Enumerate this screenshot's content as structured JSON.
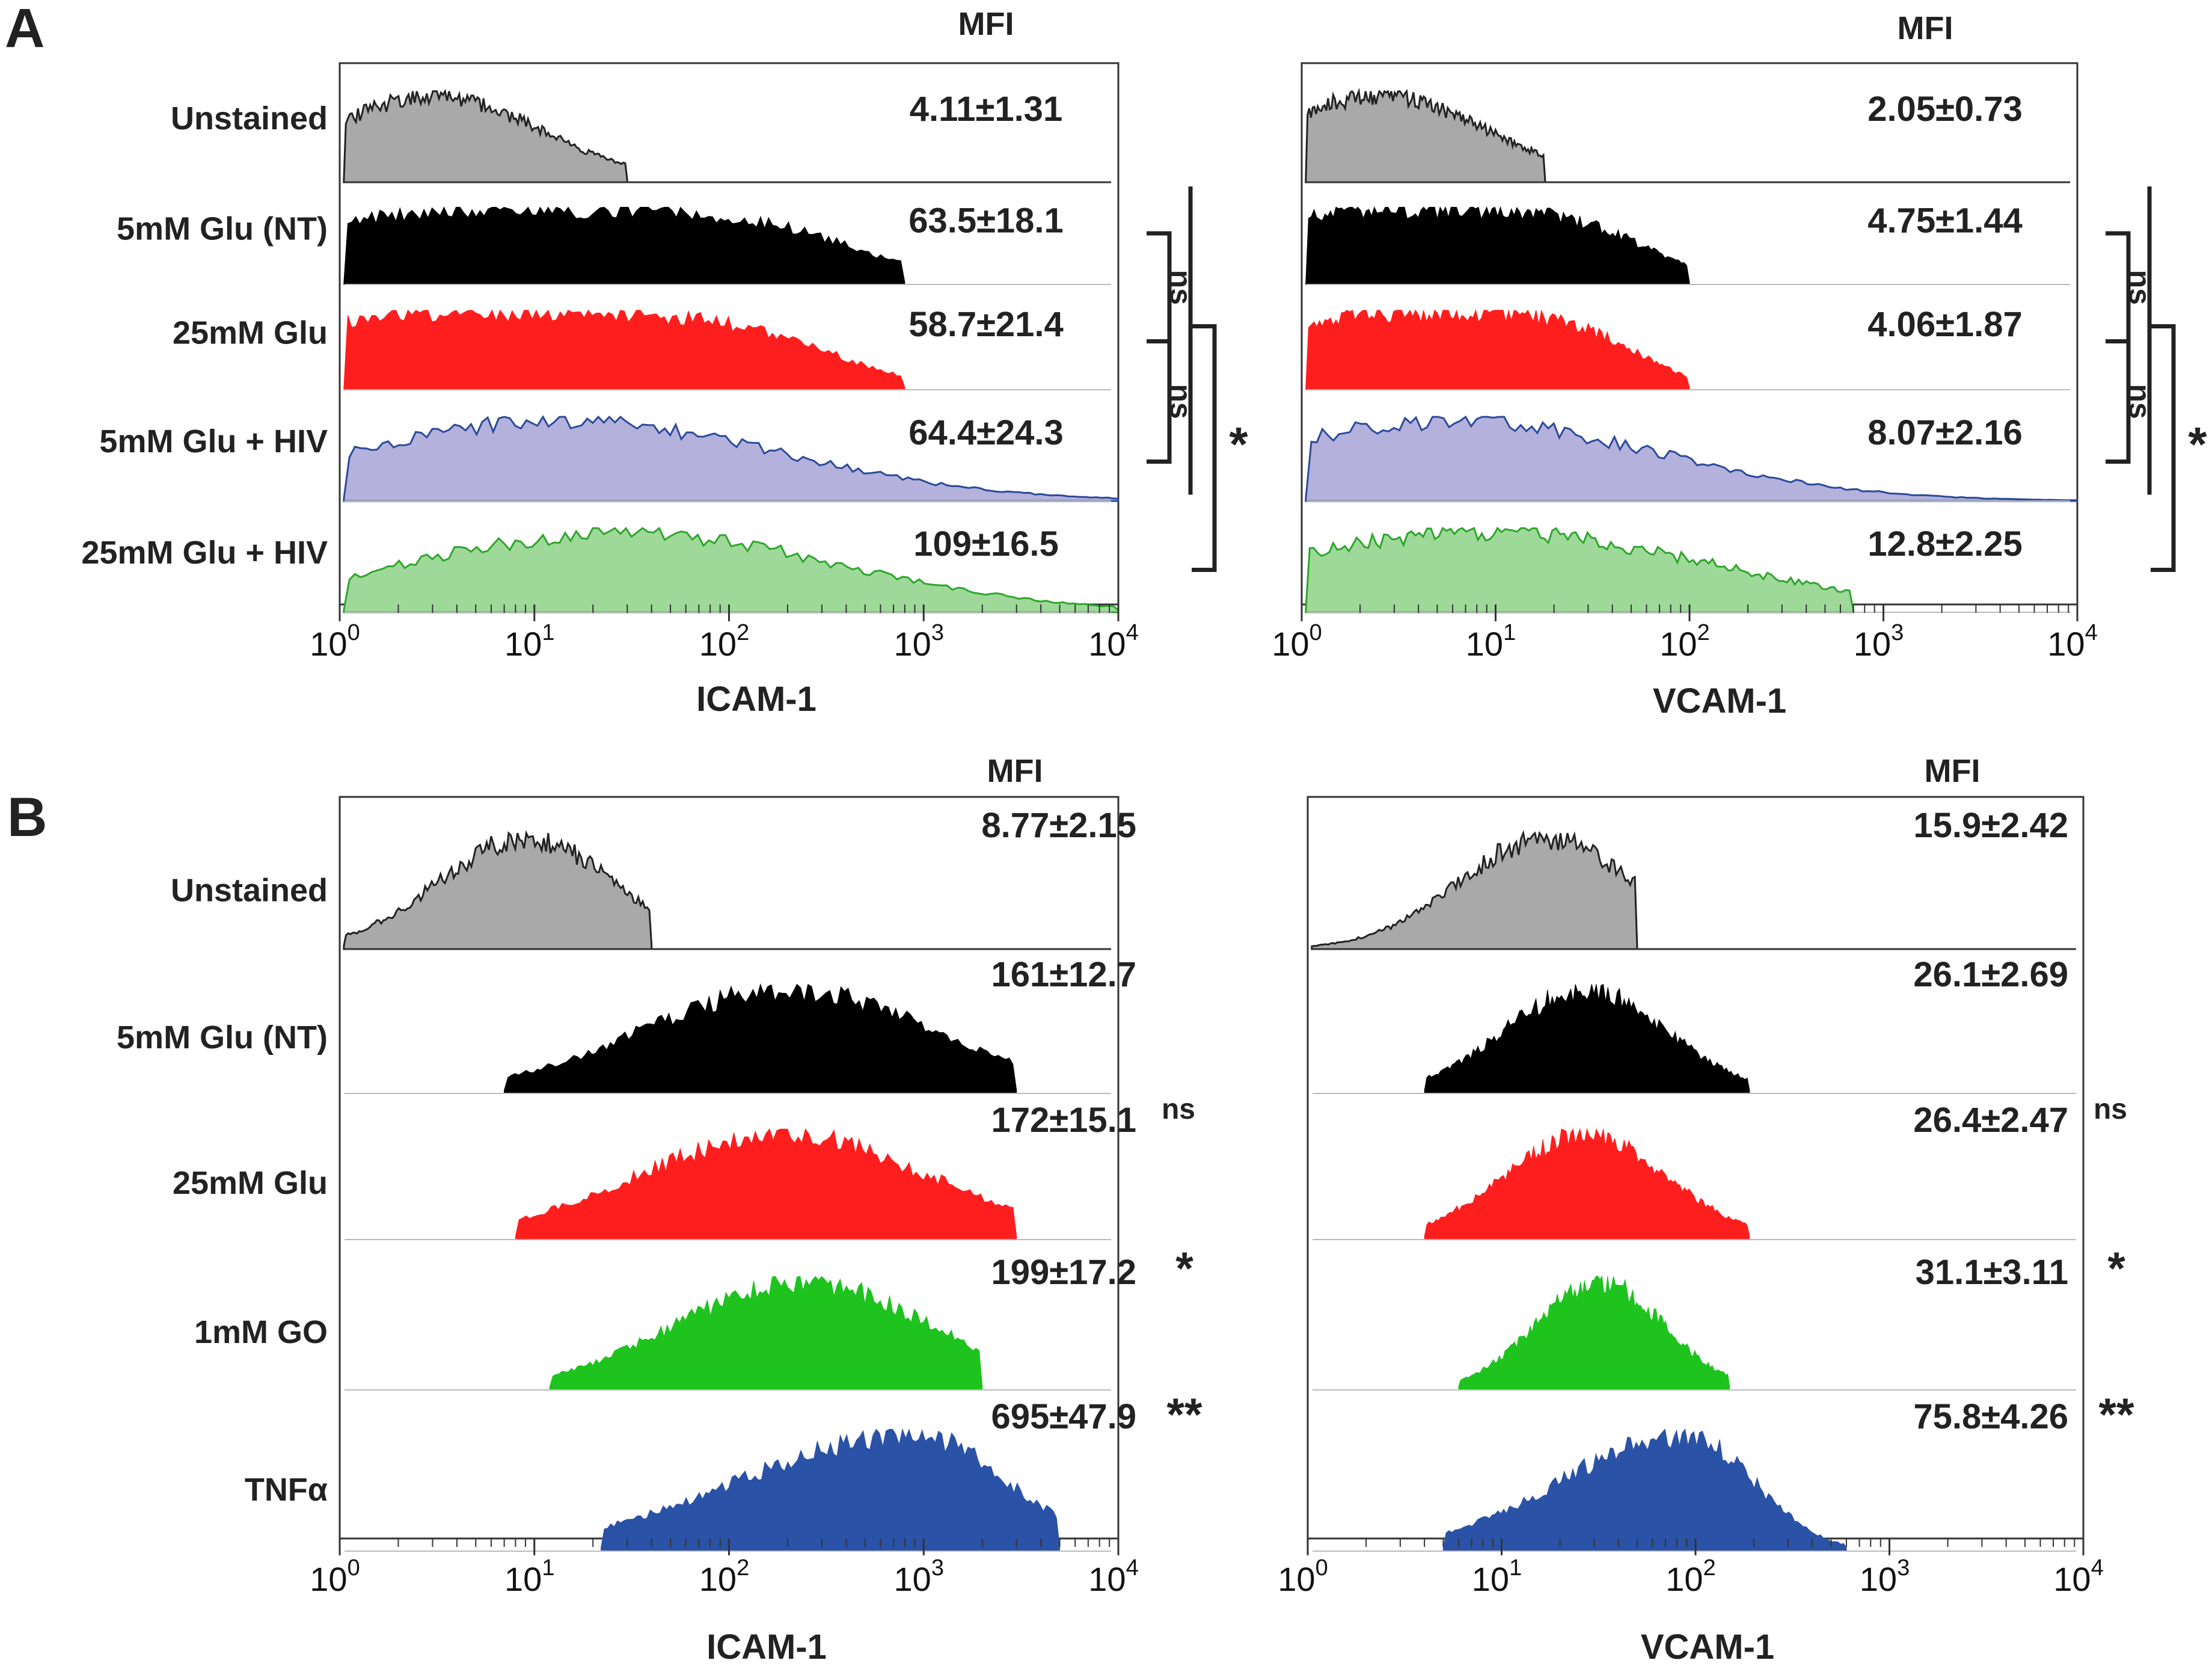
{
  "colors": {
    "unstained": "#a9a9a9",
    "nt": "#000000",
    "glu25": "#ff1e1e",
    "hiv5": "#b4b1dc",
    "hiv5_line": "#2a4a9a",
    "hiv25": "#9ed99a",
    "hiv25_line": "#2ea62a",
    "go": "#1ec31e",
    "tnf": "#2a52a6"
  },
  "chart_data": [
    {
      "panel": "A",
      "type": "histogram",
      "xscale": "log",
      "xlim": [
        1,
        10000
      ],
      "xlabel": "ICAM-1",
      "header": "MFI",
      "tick_labels": [
        "10",
        "10",
        "10",
        "10",
        "10"
      ],
      "tick_exps": [
        "0",
        "1",
        "2",
        "3",
        "4"
      ],
      "series": [
        {
          "name": "Unstained",
          "mfi": "4.11±1.31",
          "color_key": "unstained",
          "outline": true,
          "lo": 1.05,
          "hi": 30,
          "peak": 3,
          "sigma": 0.55,
          "seed": 11
        },
        {
          "name": "5mM Glu (NT)",
          "mfi": "63.5±18.1",
          "color_key": "nt",
          "lo": 1.05,
          "hi": 800,
          "peak": 12,
          "sigma": 1.3,
          "plateau": true,
          "seed": 12
        },
        {
          "name": "25mM Glu",
          "mfi": "58.7±21.4",
          "color_key": "glu25",
          "lo": 1.05,
          "hi": 800,
          "peak": 10,
          "sigma": 1.25,
          "plateau": true,
          "seed": 13
        },
        {
          "name": "5mM Glu + HIV",
          "mfi": "64.4±24.3",
          "color_key": "hiv5",
          "line_key": "hiv5_line",
          "lo": 1.05,
          "hi": 10000,
          "peak": 14,
          "sigma": 1.1,
          "seed": 14
        },
        {
          "name": "25mM Glu + HIV",
          "mfi": "109±16.5",
          "color_key": "hiv25",
          "line_key": "hiv25_line",
          "lo": 1.05,
          "hi": 10000,
          "peak": 28,
          "sigma": 1.1,
          "seed": 15
        }
      ],
      "significance": [
        {
          "label": "ns",
          "rows": [
            1,
            2
          ]
        },
        {
          "label": "ns",
          "rows": [
            2,
            3
          ]
        },
        {
          "label": "*",
          "rows": [
            1,
            4
          ]
        }
      ]
    },
    {
      "panel": "",
      "type": "histogram",
      "xscale": "log",
      "xlim": [
        1,
        10000
      ],
      "xlabel": "VCAM-1",
      "header": "MFI",
      "tick_labels": [
        "10",
        "10",
        "10",
        "10",
        "10"
      ],
      "tick_exps": [
        "0",
        "1",
        "2",
        "3",
        "4"
      ],
      "series": [
        {
          "name": "Unstained",
          "mfi": "2.05±0.73",
          "color_key": "unstained",
          "outline": true,
          "lo": 1.05,
          "hi": 18,
          "peak": 2.5,
          "sigma": 0.55,
          "seed": 21
        },
        {
          "name": "5mM Glu (NT)",
          "mfi": "4.75±1.44",
          "color_key": "nt",
          "lo": 1.05,
          "hi": 100,
          "peak": 5,
          "sigma": 0.9,
          "plateau": true,
          "seed": 22
        },
        {
          "name": "25mM Glu",
          "mfi": "4.06±1.87",
          "color_key": "glu25",
          "lo": 1.05,
          "hi": 100,
          "peak": 5,
          "sigma": 0.85,
          "plateau": true,
          "seed": 23
        },
        {
          "name": "5mM Glu + HIV",
          "mfi": "8.07±2.16",
          "color_key": "hiv5",
          "line_key": "hiv5_line",
          "lo": 1.05,
          "hi": 10000,
          "peak": 6,
          "sigma": 1.05,
          "seed": 24
        },
        {
          "name": "25mM Glu + HIV",
          "mfi": "12.8±2.25",
          "color_key": "hiv25",
          "line_key": "hiv25_line",
          "lo": 1.05,
          "hi": 700,
          "peak": 9,
          "sigma": 1.15,
          "seed": 25
        }
      ],
      "significance": [
        {
          "label": "ns",
          "rows": [
            1,
            2
          ]
        },
        {
          "label": "ns",
          "rows": [
            2,
            3
          ]
        },
        {
          "label": "*",
          "rows": [
            1,
            4
          ]
        }
      ]
    },
    {
      "panel": "B",
      "type": "histogram",
      "xscale": "log",
      "xlim": [
        1,
        10000
      ],
      "xlabel": "ICAM-1",
      "header": "MFI",
      "tick_labels": [
        "10",
        "10",
        "10",
        "10",
        "10"
      ],
      "tick_exps": [
        "0",
        "1",
        "2",
        "3",
        "4"
      ],
      "series": [
        {
          "name": "Unstained",
          "mfi": "8.77±2.15",
          "sig": "",
          "color_key": "unstained",
          "outline": true,
          "lo": 1.05,
          "hi": 40,
          "peak": 9,
          "sigma": 0.45,
          "seed": 31
        },
        {
          "name": "5mM Glu (NT)",
          "mfi": "161±12.7",
          "sig": "",
          "color_key": "nt",
          "lo": 7,
          "hi": 3000,
          "peak": 200,
          "sigma": 0.75,
          "seed": 32
        },
        {
          "name": "25mM Glu",
          "mfi": "172±15.1",
          "sig": "ns",
          "color_key": "glu25",
          "lo": 8,
          "hi": 3000,
          "peak": 190,
          "sigma": 0.75,
          "seed": 33
        },
        {
          "name": "1mM GO",
          "mfi": "199±17.2",
          "sig": "*",
          "color_key": "go",
          "lo": 12,
          "hi": 2000,
          "peak": 240,
          "sigma": 0.65,
          "seed": 34
        },
        {
          "name": "TNFα",
          "mfi": "695±47.9",
          "sig": "**",
          "color_key": "tnf",
          "lo": 22,
          "hi": 5000,
          "peak": 900,
          "sigma": 0.9,
          "skew": true,
          "seed": 35
        }
      ]
    },
    {
      "panel": "",
      "type": "histogram",
      "xscale": "log",
      "xlim": [
        1,
        10000
      ],
      "xlabel": "VCAM-1",
      "header": "MFI",
      "tick_labels": [
        "10",
        "10",
        "10",
        "10",
        "10"
      ],
      "tick_exps": [
        "0",
        "1",
        "2",
        "3",
        "4"
      ],
      "series": [
        {
          "name": "Unstained",
          "mfi": "15.9±2.42",
          "sig": "",
          "color_key": "unstained",
          "outline": true,
          "lo": 1.05,
          "hi": 50,
          "peak": 17,
          "sigma": 0.45,
          "seed": 41
        },
        {
          "name": "5mM Glu (NT)",
          "mfi": "26.1±2.69",
          "sig": "",
          "color_key": "nt",
          "lo": 4,
          "hi": 190,
          "peak": 27,
          "sigma": 0.42,
          "seed": 42
        },
        {
          "name": "25mM Glu",
          "mfi": "26.4±2.47",
          "sig": "ns",
          "color_key": "glu25",
          "lo": 4,
          "hi": 190,
          "peak": 27,
          "sigma": 0.42,
          "seed": 43
        },
        {
          "name": "1mM GO",
          "mfi": "31.1±3.11",
          "sig": "*",
          "color_key": "go",
          "lo": 6,
          "hi": 150,
          "peak": 32,
          "sigma": 0.33,
          "seed": 44
        },
        {
          "name": "TNFα",
          "mfi": "75.8±4.26",
          "sig": "**",
          "color_key": "tnf",
          "lo": 5,
          "hi": 600,
          "peak": 90,
          "sigma": 0.65,
          "skew": true,
          "seed": 45
        }
      ]
    }
  ]
}
